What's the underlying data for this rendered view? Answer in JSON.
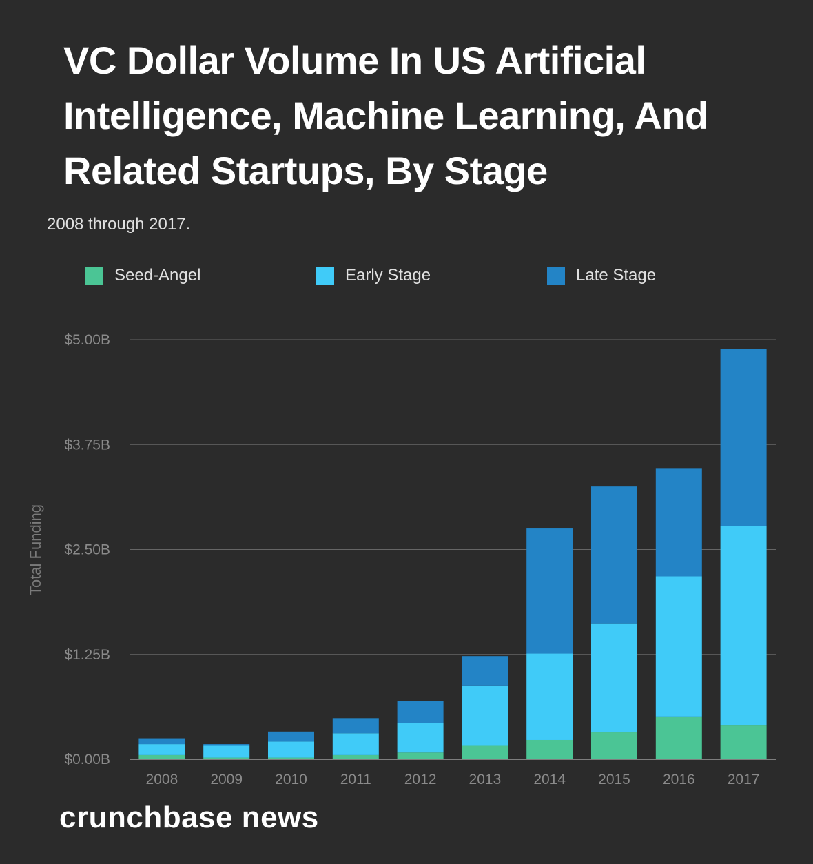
{
  "chart_data": {
    "type": "bar",
    "stacked": true,
    "title": "VC Dollar Volume In US Artificial Intelligence, Machine Learning, And Related Startups, By Stage",
    "subtitle": "2008 through 2017.",
    "ylabel": "Total Funding",
    "xlabel": "",
    "ylim": [
      0,
      5.0
    ],
    "yticks": [
      0,
      1.25,
      2.5,
      3.75,
      5.0
    ],
    "ytick_labels": [
      "$0.00B",
      "$1.25B",
      "$2.50B",
      "$3.75B",
      "$5.00B"
    ],
    "categories": [
      "2008",
      "2009",
      "2010",
      "2011",
      "2012",
      "2013",
      "2014",
      "2015",
      "2016",
      "2017"
    ],
    "series": [
      {
        "name": "Seed-Angel",
        "color": "#4bc595",
        "values": [
          0.05,
          0.02,
          0.02,
          0.05,
          0.08,
          0.16,
          0.23,
          0.32,
          0.51,
          0.41
        ]
      },
      {
        "name": "Early Stage",
        "color": "#40cbf8",
        "values": [
          0.13,
          0.14,
          0.19,
          0.26,
          0.35,
          0.72,
          1.03,
          1.3,
          1.67,
          2.37
        ]
      },
      {
        "name": "Late Stage",
        "color": "#2384c6",
        "values": [
          0.07,
          0.02,
          0.12,
          0.18,
          0.26,
          0.35,
          1.49,
          1.63,
          1.29,
          2.11
        ]
      }
    ],
    "legend_position": "top",
    "grid": true
  },
  "brand": "crunchbase news"
}
